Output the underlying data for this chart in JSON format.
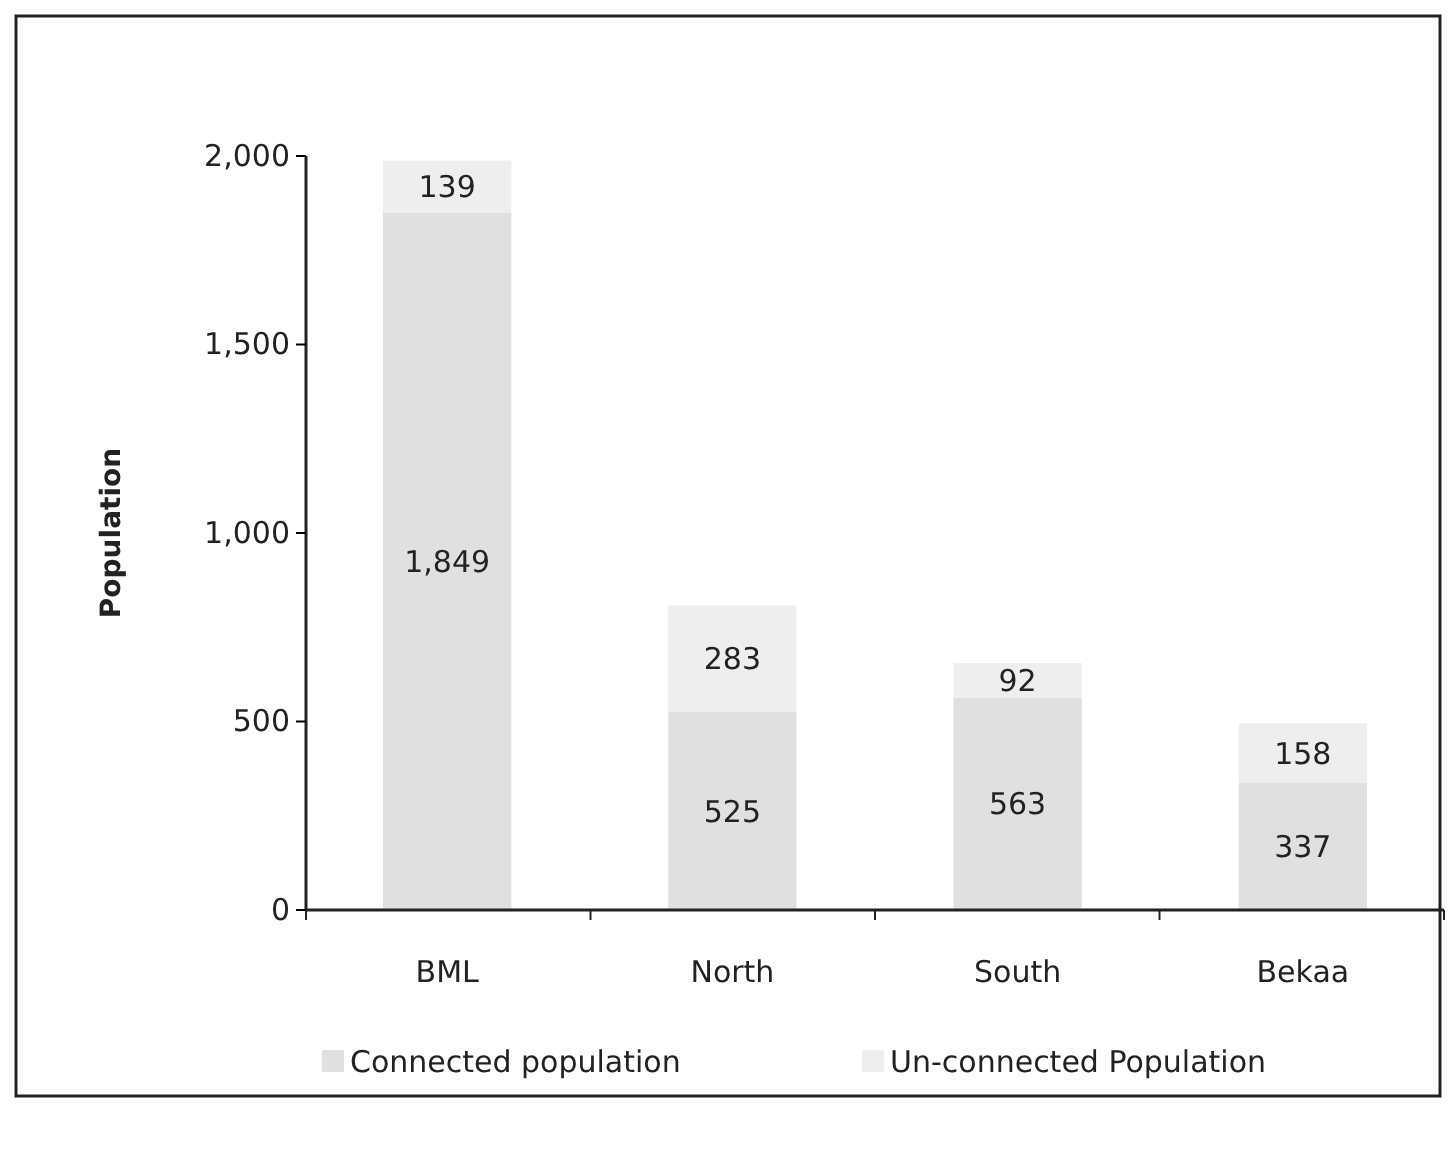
{
  "chart_data": {
    "type": "bar",
    "stacked": true,
    "ylabel": "Population",
    "categories": [
      "BML",
      "North",
      "South",
      "Bekaa"
    ],
    "series": [
      {
        "name": "Connected population",
        "color": "#e0e0e0",
        "values": [
          1849,
          525,
          563,
          337
        ],
        "value_labels": [
          "1,849",
          "525",
          "563",
          "337"
        ]
      },
      {
        "name": "Un-connected Population",
        "color": "#eeeeee",
        "values": [
          139,
          283,
          92,
          158
        ],
        "value_labels": [
          "139",
          "283",
          "92",
          "158"
        ]
      }
    ],
    "ylim": [
      0,
      2000
    ],
    "yticks": [
      {
        "value": 0,
        "label": "0"
      },
      {
        "value": 500,
        "label": "500"
      },
      {
        "value": 1000,
        "label": "1,000"
      },
      {
        "value": 1500,
        "label": "1,500"
      },
      {
        "value": 2000,
        "label": "2,000"
      }
    ],
    "legend": "bottom",
    "grid": false
  }
}
